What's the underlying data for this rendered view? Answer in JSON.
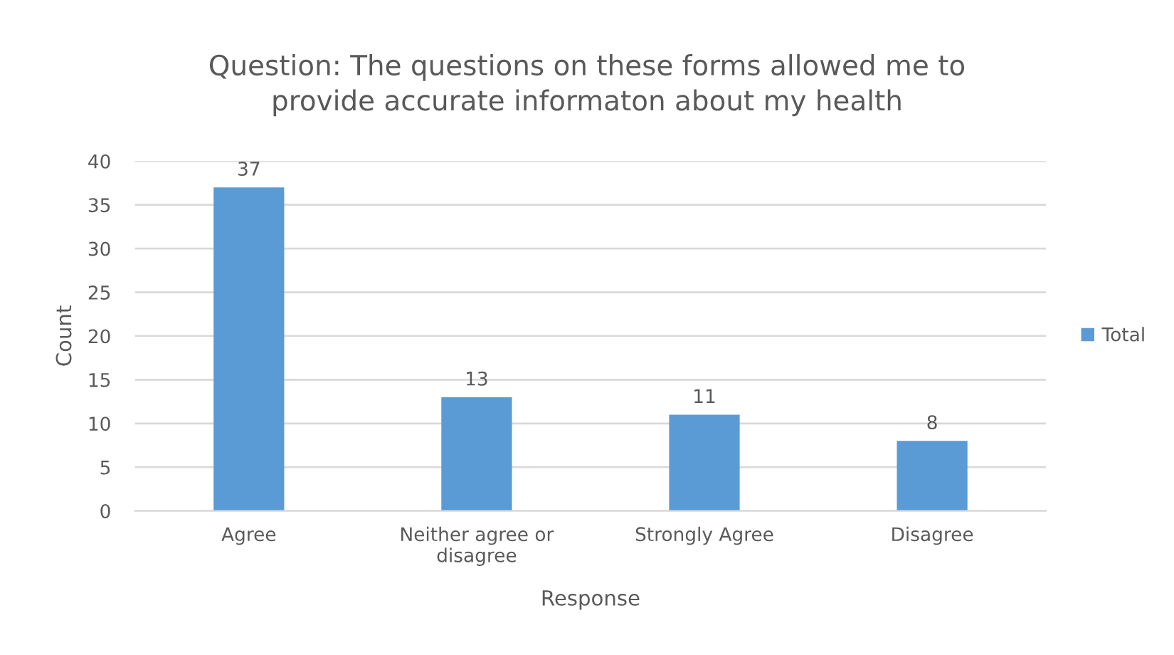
{
  "chart_data": {
    "type": "bar",
    "title": "Question: The questions on these forms allowed me to\nprovide accurate informaton about my health",
    "xlabel": "Response",
    "ylabel": "Count",
    "categories": [
      "Agree",
      "Neither agree or\ndisagree",
      "Strongly Agree",
      "Disagree"
    ],
    "series": [
      {
        "name": "Total",
        "color": "#5b9bd5",
        "values": [
          37,
          13,
          11,
          8
        ]
      }
    ],
    "ylim": [
      0,
      40
    ],
    "yticks": [
      0,
      5,
      10,
      15,
      20,
      25,
      30,
      35,
      40
    ],
    "grid": "y",
    "legend": "right",
    "data_labels": true
  }
}
